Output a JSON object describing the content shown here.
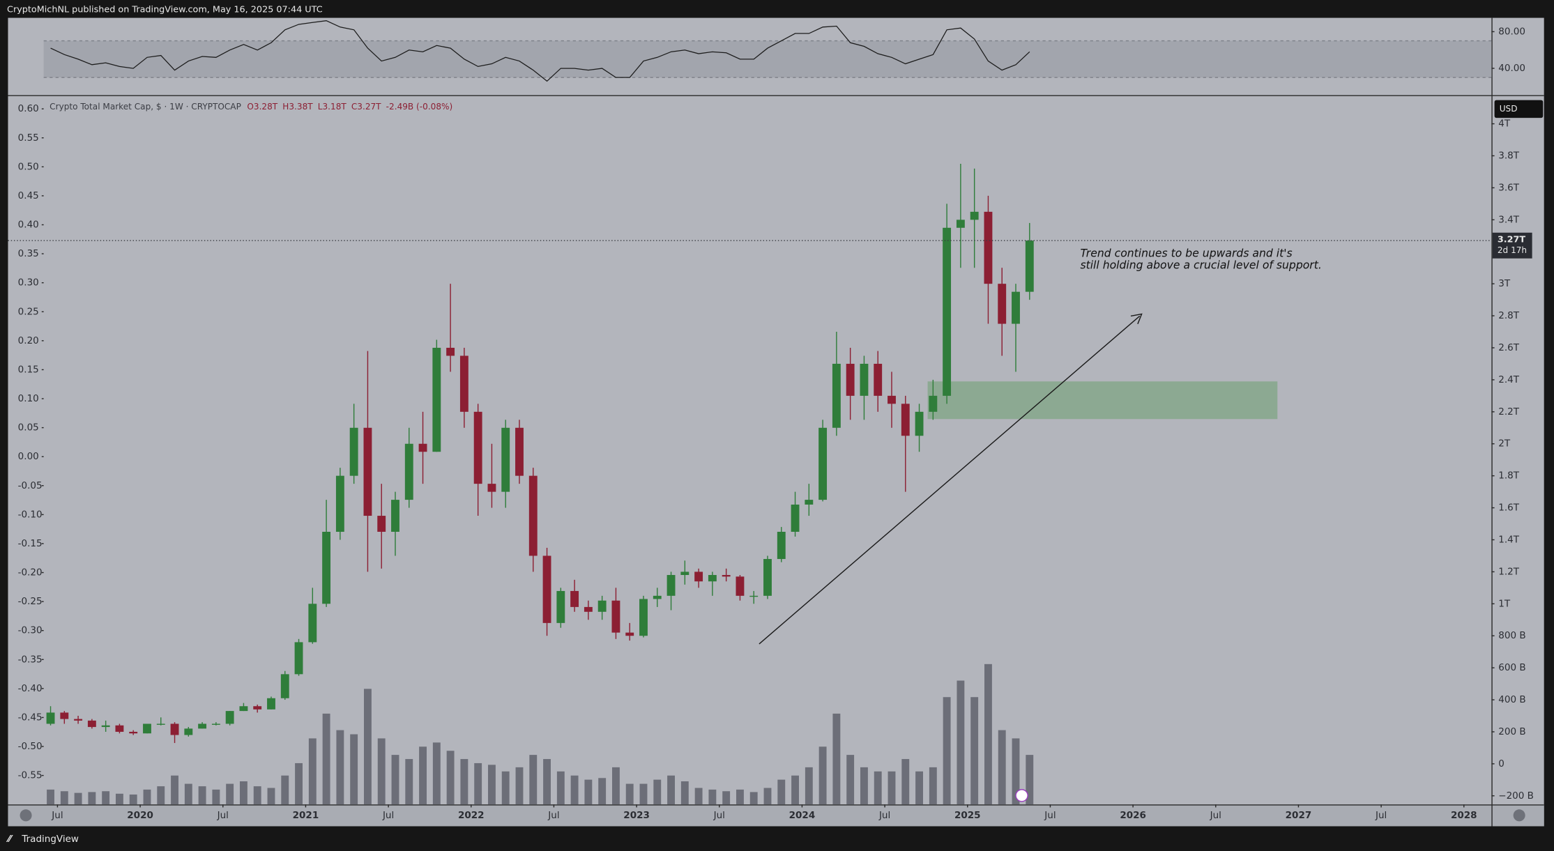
{
  "header": {
    "publisher": "CryptoMichNL published on TradingView.com, May 16, 2025 07:44 UTC"
  },
  "footer": {
    "brand": "TradingView"
  },
  "currency_button": "USD",
  "annotation": [
    "Trend continues to be upwards and it's",
    "still holding above a crucial level of support."
  ],
  "price_tag": {
    "price": "3.27T",
    "countdown": "2d 17h"
  },
  "chart_data": [
    {
      "type": "line",
      "color": "#1c1c1c",
      "ylim": [
        10.8,
        95.1
      ],
      "yticks": [
        {
          "value": 80,
          "label": "80.00"
        },
        {
          "value": 40,
          "label": "40.00"
        }
      ],
      "band": [
        30,
        70
      ],
      "values": [
        62,
        55,
        50,
        44,
        46,
        42,
        40,
        52,
        54,
        38,
        48,
        53,
        52,
        60,
        66,
        60,
        68,
        82,
        88,
        90,
        92,
        85,
        82,
        62,
        48,
        52,
        60,
        58,
        65,
        62,
        50,
        42,
        45,
        52,
        48,
        38,
        26,
        40,
        40,
        38,
        40,
        30,
        30,
        48,
        52,
        58,
        60,
        56,
        58,
        57,
        50,
        50,
        62,
        70,
        78,
        78,
        85,
        86,
        68,
        64,
        56,
        52,
        45,
        50,
        55,
        82,
        84,
        72,
        48,
        38,
        44,
        58
      ]
    },
    {
      "type": "candlestick",
      "title": "Crypto Total Market Cap, $ · 1W · CRYPTOCAP",
      "readout": [
        "O3.28T",
        "H3.38T",
        "L3.18T",
        "C3.27T",
        "-2.49B (-0.08%)"
      ],
      "up_color": "#2f7d3a",
      "down_color": "#8c1f33",
      "xlim": [
        "2019-06",
        "2028-03"
      ],
      "xticks": [
        {
          "value": "2019-07",
          "label": "Jul"
        },
        {
          "value": "2020-01",
          "label": "2020"
        },
        {
          "value": "2020-07",
          "label": "Jul"
        },
        {
          "value": "2021-01",
          "label": "2021"
        },
        {
          "value": "2021-07",
          "label": "Jul"
        },
        {
          "value": "2022-01",
          "label": "2022"
        },
        {
          "value": "2022-07",
          "label": "Jul"
        },
        {
          "value": "2023-01",
          "label": "2023"
        },
        {
          "value": "2023-07",
          "label": "Jul"
        },
        {
          "value": "2024-01",
          "label": "2024"
        },
        {
          "value": "2024-07",
          "label": "Jul"
        },
        {
          "value": "2025-01",
          "label": "2025"
        },
        {
          "value": "2025-07",
          "label": "Jul"
        },
        {
          "value": "2026-01",
          "label": "2026"
        },
        {
          "value": "2026-07",
          "label": "Jul"
        },
        {
          "value": "2027-01",
          "label": "2027"
        },
        {
          "value": "2027-07",
          "label": "Jul"
        },
        {
          "value": "2028-01",
          "label": "2028"
        }
      ],
      "ylim": [
        -0.254,
        4.173
      ],
      "yticks": [
        {
          "value": 4,
          "label": "4T"
        },
        {
          "value": 3.8,
          "label": "3.8T"
        },
        {
          "value": 3.6,
          "label": "3.6T"
        },
        {
          "value": 3.4,
          "label": "3.4T"
        },
        {
          "value": 3,
          "label": "3T"
        },
        {
          "value": 2.8,
          "label": "2.8T"
        },
        {
          "value": 2.6,
          "label": "2.6T"
        },
        {
          "value": 2.4,
          "label": "2.4T"
        },
        {
          "value": 2.2,
          "label": "2.2T"
        },
        {
          "value": 2,
          "label": "2T"
        },
        {
          "value": 1.8,
          "label": "1.8T"
        },
        {
          "value": 1.6,
          "label": "1.6T"
        },
        {
          "value": 1.4,
          "label": "1.4T"
        },
        {
          "value": 1.2,
          "label": "1.2T"
        },
        {
          "value": 1,
          "label": "1T"
        },
        {
          "value": 0.8,
          "label": "800 B"
        },
        {
          "value": 0.6,
          "label": "600 B"
        },
        {
          "value": 0.4,
          "label": "400 B"
        },
        {
          "value": 0.2,
          "label": "200 B"
        },
        0,
        {
          "value": -0.2,
          "label": "−200 B"
        }
      ],
      "y2lim": [
        -0.6,
        0.622
      ],
      "y2ticks": [
        {
          "value": 0.6,
          "label": "0.60"
        },
        0.55,
        {
          "value": 0.5,
          "label": "0.50"
        },
        0.45,
        {
          "value": 0.4,
          "label": "0.40"
        },
        0.35,
        {
          "value": 0.3,
          "label": "0.30"
        },
        0.25,
        {
          "value": 0.2,
          "label": "0.20"
        },
        0.15,
        {
          "value": 0.1,
          "label": "0.10"
        },
        0.05,
        {
          "value": 0,
          "label": "0.00"
        },
        -0.05,
        {
          "value": -0.1,
          "label": "-0.10"
        },
        -0.15,
        {
          "value": -0.2,
          "label": "-0.20"
        },
        -0.25,
        {
          "value": -0.3,
          "label": "-0.30"
        },
        -0.35,
        {
          "value": -0.4,
          "label": "-0.40"
        },
        -0.45,
        {
          "value": -0.5,
          "label": "-0.50"
        },
        -0.55
      ],
      "x": [
        "2019-06",
        "2019-07",
        "2019-08",
        "2019-09",
        "2019-10",
        "2019-11",
        "2019-12",
        "2020-01",
        "2020-02",
        "2020-03",
        "2020-04",
        "2020-05",
        "2020-06",
        "2020-07",
        "2020-08",
        "2020-09",
        "2020-10",
        "2020-11",
        "2020-12",
        "2021-01",
        "2021-02",
        "2021-03",
        "2021-04",
        "2021-05",
        "2021-06",
        "2021-07",
        "2021-08",
        "2021-09",
        "2021-10",
        "2021-11",
        "2021-12",
        "2022-01",
        "2022-02",
        "2022-03",
        "2022-04",
        "2022-05",
        "2022-06",
        "2022-07",
        "2022-08",
        "2022-09",
        "2022-10",
        "2022-11",
        "2022-12",
        "2023-01",
        "2023-02",
        "2023-03",
        "2023-04",
        "2023-05",
        "2023-06",
        "2023-07",
        "2023-08",
        "2023-09",
        "2023-10",
        "2023-11",
        "2023-12",
        "2024-01",
        "2024-02",
        "2024-03",
        "2024-04",
        "2024-05",
        "2024-06",
        "2024-07",
        "2024-08",
        "2024-09",
        "2024-10",
        "2024-11",
        "2024-12",
        "2025-01",
        "2025-02",
        "2025-03",
        "2025-04",
        "2025-05"
      ],
      "values": [
        [
          0.25,
          0.36,
          0.24,
          0.32
        ],
        [
          0.32,
          0.33,
          0.25,
          0.28
        ],
        [
          0.28,
          0.3,
          0.25,
          0.27
        ],
        [
          0.27,
          0.28,
          0.22,
          0.23
        ],
        [
          0.23,
          0.27,
          0.2,
          0.24
        ],
        [
          0.24,
          0.25,
          0.19,
          0.2
        ],
        [
          0.2,
          0.21,
          0.18,
          0.19
        ],
        [
          0.19,
          0.25,
          0.19,
          0.25
        ],
        [
          0.25,
          0.29,
          0.24,
          0.25
        ],
        [
          0.25,
          0.26,
          0.13,
          0.18
        ],
        [
          0.18,
          0.23,
          0.17,
          0.22
        ],
        [
          0.22,
          0.26,
          0.22,
          0.25
        ],
        [
          0.25,
          0.26,
          0.24,
          0.25
        ],
        [
          0.25,
          0.33,
          0.24,
          0.33
        ],
        [
          0.33,
          0.38,
          0.33,
          0.36
        ],
        [
          0.36,
          0.37,
          0.32,
          0.34
        ],
        [
          0.34,
          0.42,
          0.34,
          0.41
        ],
        [
          0.41,
          0.58,
          0.4,
          0.56
        ],
        [
          0.56,
          0.78,
          0.55,
          0.76
        ],
        [
          0.76,
          1.1,
          0.75,
          1.0
        ],
        [
          1.0,
          1.65,
          0.98,
          1.45
        ],
        [
          1.45,
          1.85,
          1.4,
          1.8
        ],
        [
          1.8,
          2.25,
          1.75,
          2.1
        ],
        [
          2.1,
          2.58,
          1.2,
          1.55
        ],
        [
          1.55,
          1.75,
          1.22,
          1.45
        ],
        [
          1.45,
          1.7,
          1.3,
          1.65
        ],
        [
          1.65,
          2.1,
          1.6,
          2.0
        ],
        [
          2.0,
          2.2,
          1.75,
          1.95
        ],
        [
          1.95,
          2.65,
          1.95,
          2.6
        ],
        [
          2.6,
          3.0,
          2.45,
          2.55
        ],
        [
          2.55,
          2.6,
          2.1,
          2.2
        ],
        [
          2.2,
          2.25,
          1.55,
          1.75
        ],
        [
          1.75,
          2.0,
          1.6,
          1.7
        ],
        [
          1.7,
          2.15,
          1.6,
          2.1
        ],
        [
          2.1,
          2.15,
          1.75,
          1.8
        ],
        [
          1.8,
          1.85,
          1.2,
          1.3
        ],
        [
          1.3,
          1.35,
          0.8,
          0.88
        ],
        [
          0.88,
          1.1,
          0.85,
          1.08
        ],
        [
          1.08,
          1.15,
          0.95,
          0.98
        ],
        [
          0.98,
          1.02,
          0.9,
          0.95
        ],
        [
          0.95,
          1.05,
          0.9,
          1.02
        ],
        [
          1.02,
          1.1,
          0.78,
          0.82
        ],
        [
          0.82,
          0.88,
          0.77,
          0.8
        ],
        [
          0.8,
          1.05,
          0.79,
          1.03
        ],
        [
          1.03,
          1.1,
          0.98,
          1.05
        ],
        [
          1.05,
          1.2,
          0.96,
          1.18
        ],
        [
          1.18,
          1.27,
          1.12,
          1.2
        ],
        [
          1.2,
          1.22,
          1.1,
          1.14
        ],
        [
          1.14,
          1.2,
          1.05,
          1.18
        ],
        [
          1.18,
          1.22,
          1.14,
          1.17
        ],
        [
          1.17,
          1.18,
          1.02,
          1.05
        ],
        [
          1.05,
          1.08,
          1.0,
          1.05
        ],
        [
          1.05,
          1.3,
          1.03,
          1.28
        ],
        [
          1.28,
          1.48,
          1.26,
          1.45
        ],
        [
          1.45,
          1.7,
          1.42,
          1.62
        ],
        [
          1.62,
          1.75,
          1.55,
          1.65
        ],
        [
          1.65,
          2.15,
          1.64,
          2.1
        ],
        [
          2.1,
          2.7,
          2.05,
          2.5
        ],
        [
          2.5,
          2.6,
          2.15,
          2.3
        ],
        [
          2.3,
          2.55,
          2.15,
          2.5
        ],
        [
          2.5,
          2.58,
          2.2,
          2.3
        ],
        [
          2.3,
          2.45,
          2.1,
          2.25
        ],
        [
          2.25,
          2.3,
          1.7,
          2.05
        ],
        [
          2.05,
          2.25,
          1.95,
          2.2
        ],
        [
          2.2,
          2.4,
          2.15,
          2.3
        ],
        [
          2.3,
          3.5,
          2.25,
          3.35
        ],
        [
          3.35,
          3.75,
          3.1,
          3.4
        ],
        [
          3.4,
          3.72,
          3.1,
          3.45
        ],
        [
          3.45,
          3.55,
          2.75,
          3.0
        ],
        [
          3.0,
          3.1,
          2.55,
          2.75
        ],
        [
          2.75,
          3.0,
          2.45,
          2.95
        ],
        [
          2.95,
          3.38,
          2.9,
          3.27
        ]
      ]
    },
    {
      "type": "bar",
      "color": "#5f626c",
      "ylim": [
        0,
        300
      ],
      "values": [
        18,
        16,
        14,
        15,
        16,
        13,
        12,
        18,
        22,
        35,
        25,
        22,
        18,
        25,
        28,
        22,
        20,
        35,
        50,
        80,
        110,
        90,
        85,
        140,
        80,
        60,
        55,
        70,
        75,
        65,
        55,
        50,
        48,
        40,
        45,
        60,
        55,
        40,
        35,
        30,
        32,
        45,
        25,
        25,
        30,
        35,
        28,
        20,
        18,
        16,
        18,
        15,
        20,
        30,
        35,
        45,
        70,
        110,
        60,
        45,
        40,
        40,
        55,
        40,
        45,
        130,
        150,
        130,
        170,
        90,
        80,
        60
      ]
    }
  ]
}
